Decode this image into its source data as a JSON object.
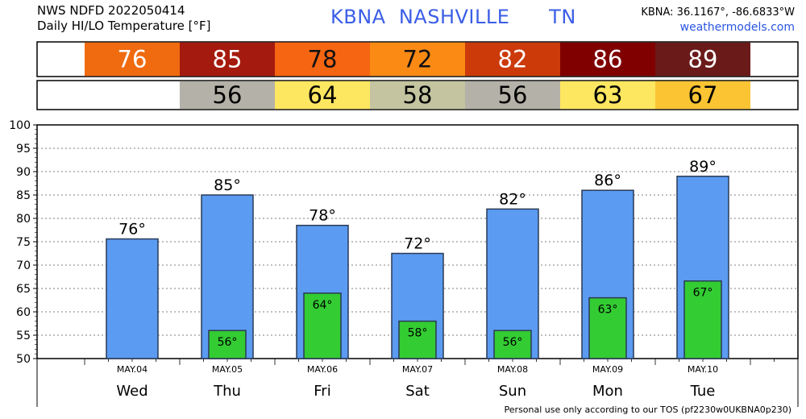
{
  "header": {
    "line1": "NWS NDFD 2022050414",
    "line2": "Daily HI/LO Temperature [°F]",
    "station_title": "KBNA  NASHVILLE      TN",
    "coords": "KBNA: 36.1167°, -86.6833°W",
    "site": "weathermodels.com"
  },
  "footer": "Personal use only according to our TOS (pf2230w0UKBNA0p230)",
  "degree_symbol": "°",
  "colors": {
    "hi_bar": "#5b9bf2",
    "lo_bar": "#33cc33",
    "bar_stroke": "#2b3a55",
    "hi_tiles": [
      "#f06a10",
      "#a51a0e",
      "#f56512",
      "#fa8a14",
      "#cc3a0a",
      "#800000",
      "#6b1a1a"
    ],
    "lo_tiles": [
      "#b4b2a8",
      "#fde660",
      "#c4c4a0",
      "#b4b2a8",
      "#fde660",
      "#fbc433"
    ]
  },
  "chart_data": {
    "type": "bar",
    "title": "Daily HI/LO Temperature [°F]",
    "ylim": [
      50,
      100
    ],
    "yticks": [
      50,
      55,
      60,
      65,
      70,
      75,
      80,
      85,
      90,
      95,
      100
    ],
    "dates": [
      "MAY.04",
      "MAY.05",
      "MAY.06",
      "MAY.07",
      "MAY.08",
      "MAY.09",
      "MAY.10"
    ],
    "days": [
      "Wed",
      "Thu",
      "Fri",
      "Sat",
      "Sun",
      "Mon",
      "Tue"
    ],
    "series": [
      {
        "name": "HI",
        "values": [
          76,
          85,
          78,
          72,
          82,
          86,
          89
        ],
        "bar_values": [
          75.6,
          85,
          78.5,
          72.5,
          82,
          86,
          89
        ]
      },
      {
        "name": "LO",
        "values": [
          null,
          56,
          64,
          58,
          56,
          63,
          67
        ],
        "bar_values": [
          null,
          56,
          64,
          58,
          56,
          63,
          66.6
        ]
      }
    ]
  }
}
